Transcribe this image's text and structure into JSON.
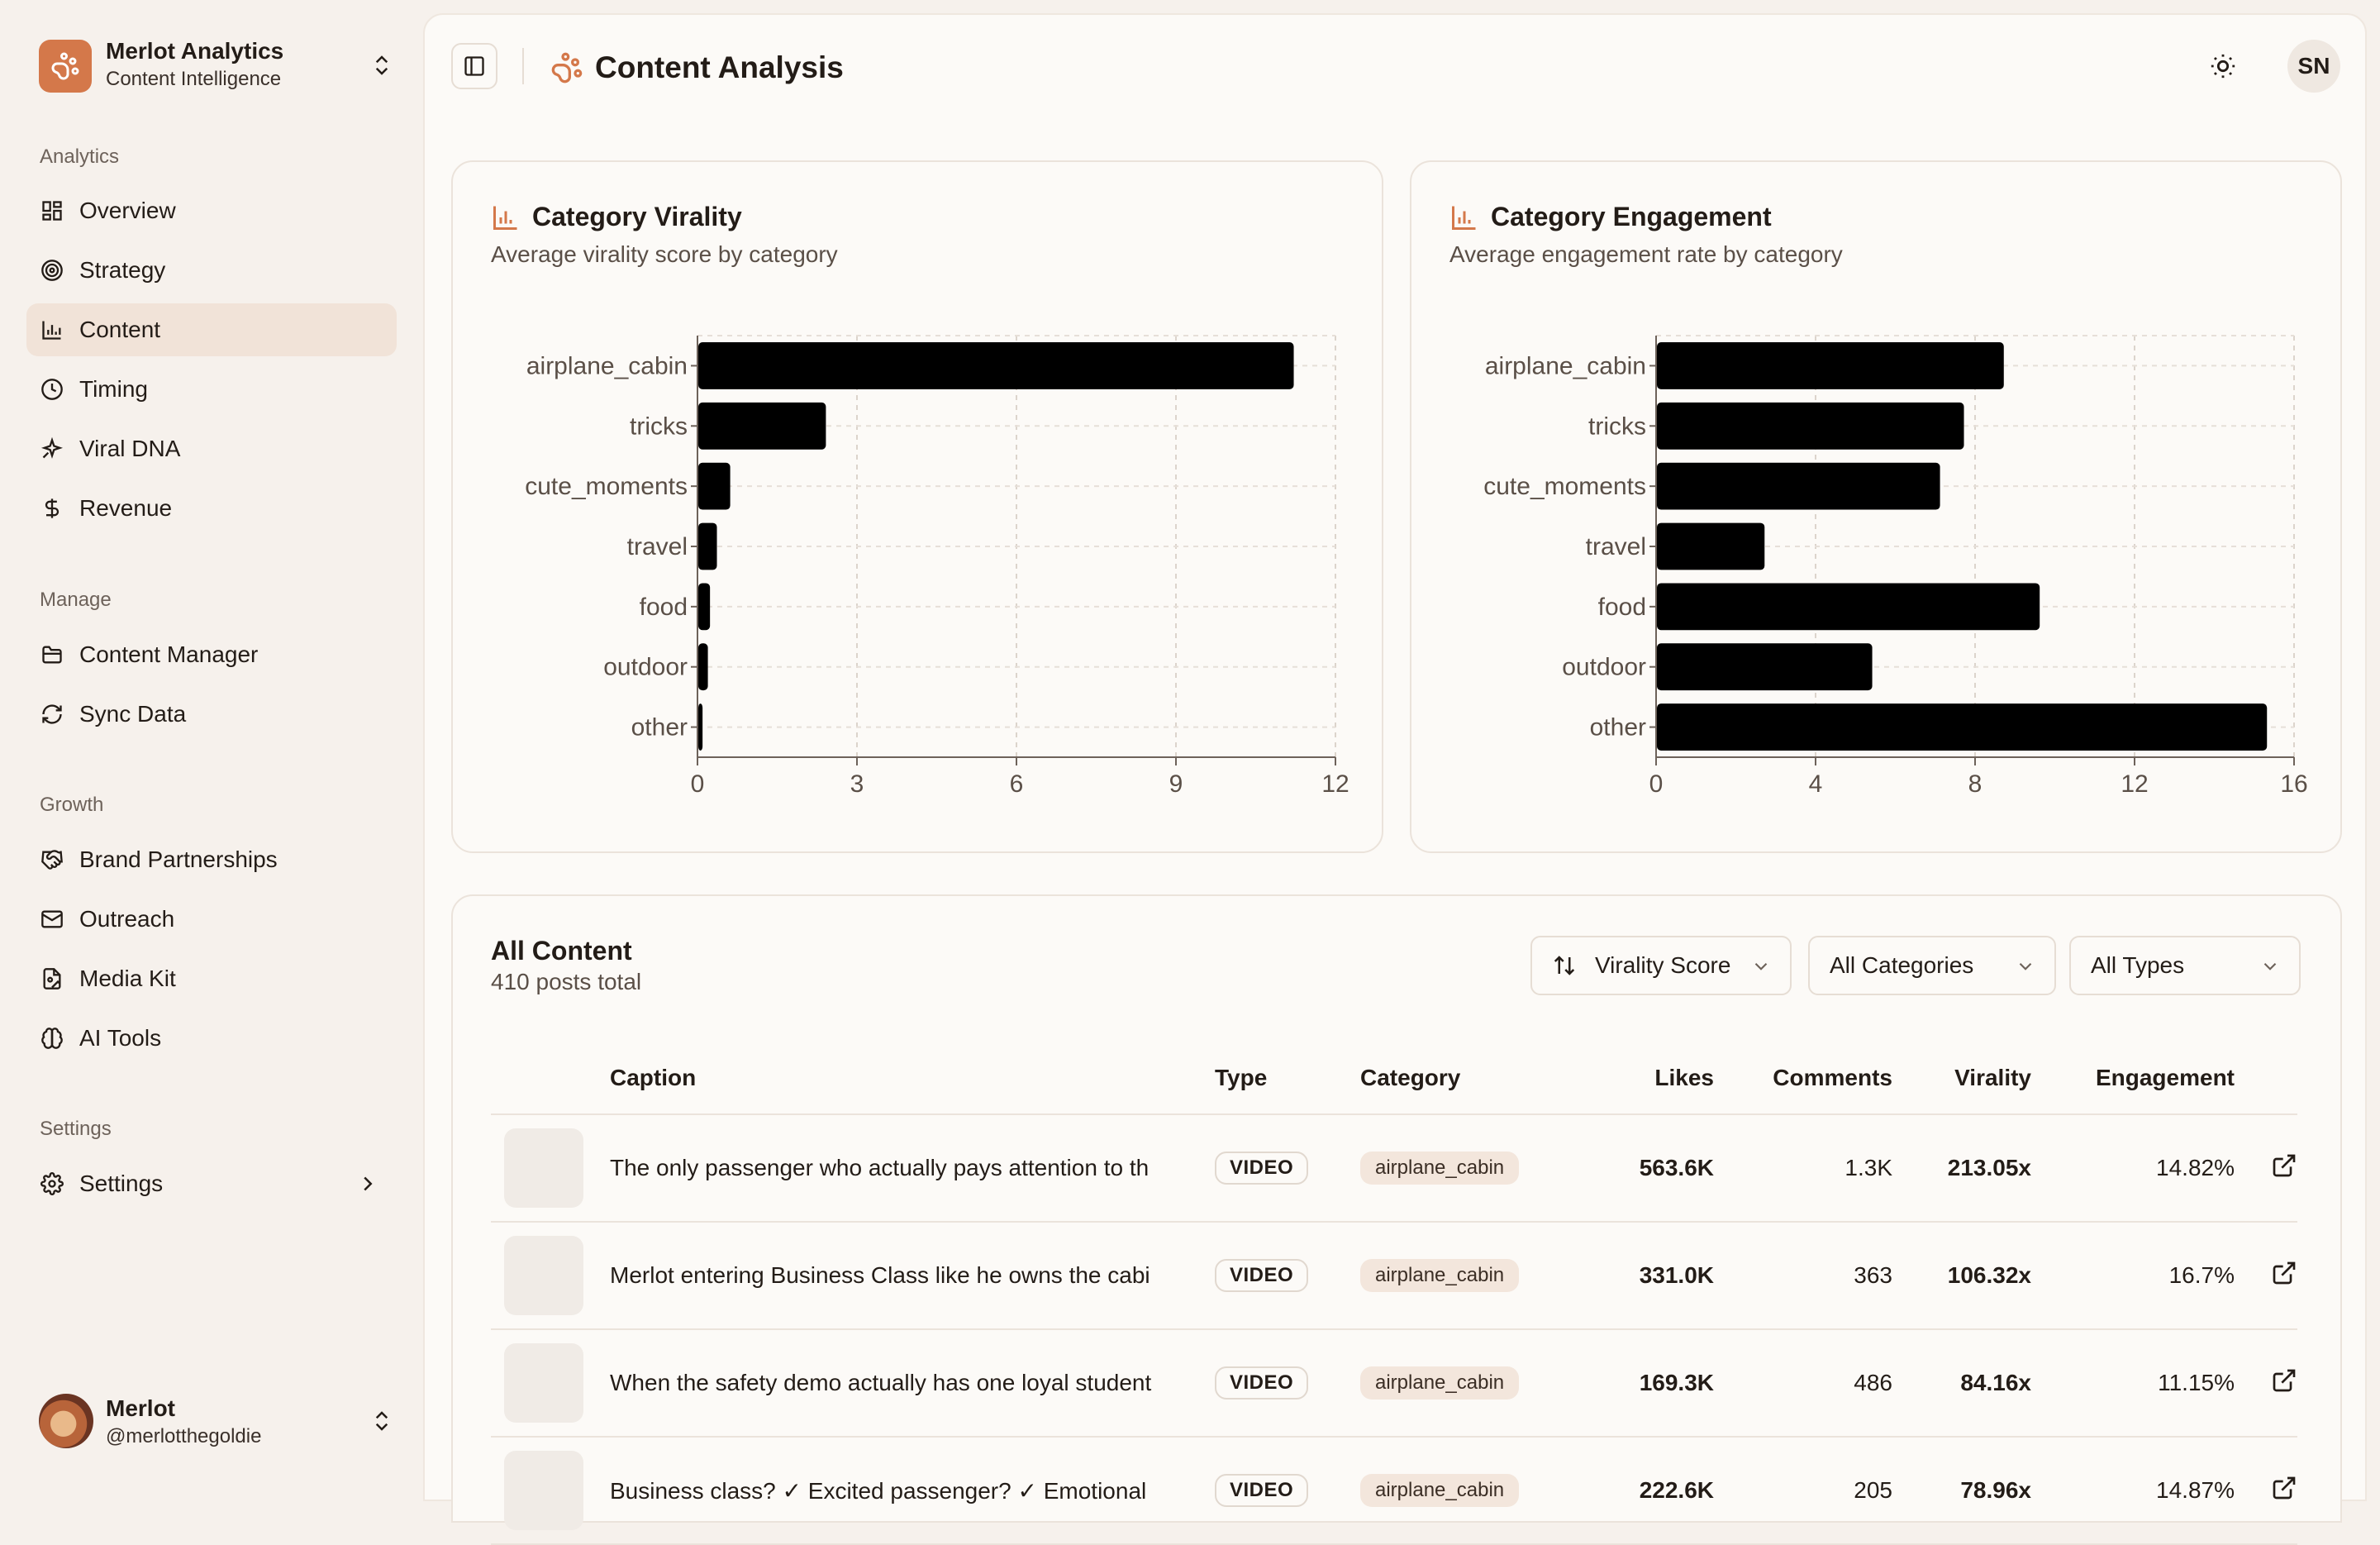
{
  "brand": {
    "name": "Merlot Analytics",
    "subtitle": "Content Intelligence"
  },
  "nav": {
    "analytics_label": "Analytics",
    "analytics": [
      {
        "label": "Overview",
        "icon": "grid-icon"
      },
      {
        "label": "Strategy",
        "icon": "target-icon"
      },
      {
        "label": "Content",
        "icon": "bar-chart-icon",
        "active": true
      },
      {
        "label": "Timing",
        "icon": "clock-icon"
      },
      {
        "label": "Viral DNA",
        "icon": "sparkle-icon"
      },
      {
        "label": "Revenue",
        "icon": "dollar-icon"
      }
    ],
    "manage_label": "Manage",
    "manage": [
      {
        "label": "Content Manager",
        "icon": "folder-icon"
      },
      {
        "label": "Sync Data",
        "icon": "refresh-icon"
      }
    ],
    "growth_label": "Growth",
    "growth": [
      {
        "label": "Brand Partnerships",
        "icon": "handshake-icon"
      },
      {
        "label": "Outreach",
        "icon": "mail-icon"
      },
      {
        "label": "Media Kit",
        "icon": "file-icon"
      },
      {
        "label": "AI Tools",
        "icon": "brain-icon"
      }
    ],
    "settings_label": "Settings",
    "settings": [
      {
        "label": "Settings",
        "icon": "gear-icon"
      }
    ]
  },
  "user": {
    "name": "Merlot",
    "handle": "@merlotthegoldie",
    "initials": "SN"
  },
  "header": {
    "title": "Content Analysis"
  },
  "virality_card": {
    "title": "Category Virality",
    "subtitle": "Average virality score by category"
  },
  "engagement_card": {
    "title": "Category Engagement",
    "subtitle": "Average engagement rate by category"
  },
  "chart_data": [
    {
      "type": "bar",
      "orientation": "horizontal",
      "title": "Category Virality",
      "subtitle": "Average virality score by category",
      "categories": [
        "airplane_cabin",
        "tricks",
        "cute_moments",
        "travel",
        "food",
        "outdoor",
        "other"
      ],
      "values": [
        11.2,
        2.4,
        0.6,
        0.35,
        0.22,
        0.18,
        0.08
      ],
      "xlim": [
        0,
        12
      ],
      "xticks": [
        0,
        3,
        6,
        9,
        12
      ],
      "grid": true,
      "bar_color": "#000000"
    },
    {
      "type": "bar",
      "orientation": "horizontal",
      "title": "Category Engagement",
      "subtitle": "Average engagement rate by category",
      "categories": [
        "airplane_cabin",
        "tricks",
        "cute_moments",
        "travel",
        "food",
        "outdoor",
        "other"
      ],
      "values": [
        8.7,
        7.7,
        7.1,
        2.7,
        9.6,
        5.4,
        15.3
      ],
      "xlim": [
        0,
        16
      ],
      "xticks": [
        0,
        4,
        8,
        12,
        16
      ],
      "grid": true,
      "bar_color": "#000000"
    }
  ],
  "content_table": {
    "title": "All Content",
    "subtitle": "410 posts total",
    "sort_select": "Virality Score",
    "category_select": "All Categories",
    "type_select": "All Types",
    "columns": [
      "Caption",
      "Type",
      "Category",
      "Likes",
      "Comments",
      "Virality",
      "Engagement"
    ],
    "rows": [
      {
        "caption": "The only passenger who actually pays attention to th",
        "type": "VIDEO",
        "category": "airplane_cabin",
        "likes": "563.6K",
        "comments": "1.3K",
        "virality": "213.05x",
        "engagement": "14.82%"
      },
      {
        "caption": "Merlot entering Business Class like he owns the cabi",
        "type": "VIDEO",
        "category": "airplane_cabin",
        "likes": "331.0K",
        "comments": "363",
        "virality": "106.32x",
        "engagement": "16.7%"
      },
      {
        "caption": "When the safety demo actually has one loyal student",
        "type": "VIDEO",
        "category": "airplane_cabin",
        "likes": "169.3K",
        "comments": "486",
        "virality": "84.16x",
        "engagement": "11.15%"
      },
      {
        "caption": "Business class? ✓ Excited passenger? ✓ Emotional",
        "type": "VIDEO",
        "category": "airplane_cabin",
        "likes": "222.6K",
        "comments": "205",
        "virality": "78.96x",
        "engagement": "14.87%"
      }
    ]
  },
  "colors": {
    "accent": "#d4784a",
    "active_nav": "#f1e3d8",
    "virality_text": "#c8743f"
  }
}
